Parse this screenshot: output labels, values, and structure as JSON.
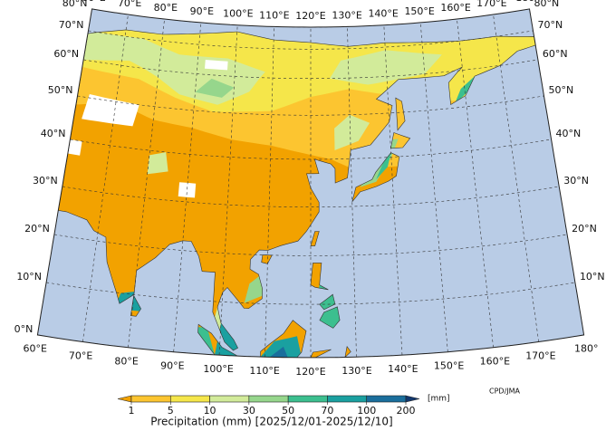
{
  "map": {
    "lon_ticks": [
      {
        "value": 60,
        "label": "60°E"
      },
      {
        "value": 70,
        "label": "70°E"
      },
      {
        "value": 80,
        "label": "80°E"
      },
      {
        "value": 90,
        "label": "90°E"
      },
      {
        "value": 100,
        "label": "100°E"
      },
      {
        "value": 110,
        "label": "110°E"
      },
      {
        "value": 120,
        "label": "120°E"
      },
      {
        "value": 130,
        "label": "130°E"
      },
      {
        "value": 140,
        "label": "140°E"
      },
      {
        "value": 150,
        "label": "150°E"
      },
      {
        "value": 160,
        "label": "160°E"
      },
      {
        "value": 170,
        "label": "170°E"
      },
      {
        "value": 180,
        "label": "180°"
      }
    ],
    "lat_ticks": [
      {
        "value": 0,
        "label": "0°N"
      },
      {
        "value": 10,
        "label": "10°N"
      },
      {
        "value": 20,
        "label": "20°N"
      },
      {
        "value": 30,
        "label": "30°N"
      },
      {
        "value": 40,
        "label": "40°N"
      },
      {
        "value": 50,
        "label": "50°N"
      },
      {
        "value": 60,
        "label": "60°N"
      },
      {
        "value": 70,
        "label": "70°N"
      },
      {
        "value": 80,
        "label": "80°N"
      }
    ]
  },
  "colorbar": {
    "ticks": [
      1,
      5,
      10,
      30,
      50,
      70,
      100,
      200
    ],
    "colors": [
      "#f2a200",
      "#fcc530",
      "#f5e64a",
      "#d2eb9a",
      "#96d68c",
      "#3cbf8f",
      "#1aa0a0",
      "#1a6e9c",
      "#12386e"
    ],
    "unit": "[mm]",
    "label": "Precipitation (mm) [2025/12/01-2025/12/10]"
  },
  "credit": "CPD/JMA"
}
